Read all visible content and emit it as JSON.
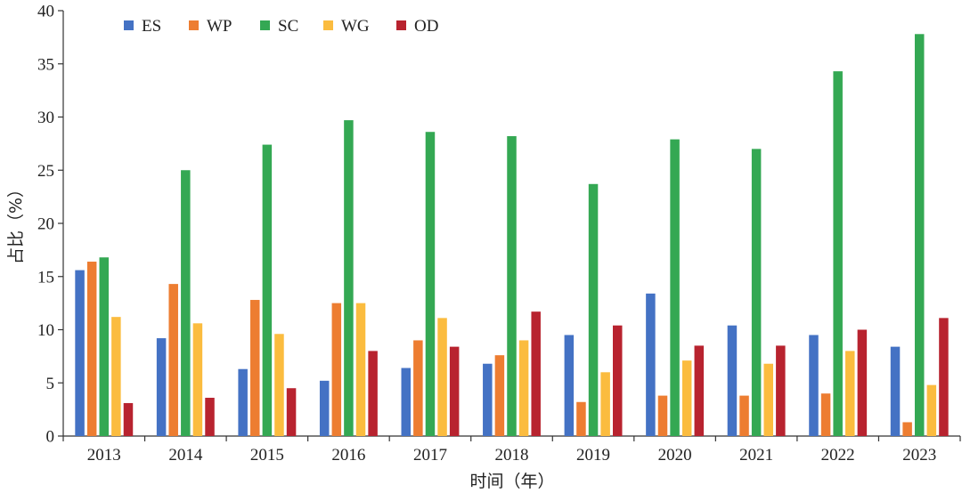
{
  "chart_data": {
    "type": "bar",
    "categories": [
      "2013",
      "2014",
      "2015",
      "2016",
      "2017",
      "2018",
      "2019",
      "2020",
      "2021",
      "2022",
      "2023"
    ],
    "series": [
      {
        "name": "ES",
        "color": "#4472c4",
        "values": [
          15.6,
          9.2,
          6.3,
          5.2,
          6.4,
          6.8,
          9.5,
          13.4,
          10.4,
          9.5,
          8.4
        ]
      },
      {
        "name": "WP",
        "color": "#ed7d31",
        "values": [
          16.4,
          14.3,
          12.8,
          12.5,
          9.0,
          7.6,
          3.2,
          3.8,
          3.8,
          4.0,
          1.3
        ]
      },
      {
        "name": "SC",
        "color": "#34a853",
        "values": [
          16.8,
          25.0,
          27.4,
          29.7,
          28.6,
          28.2,
          23.7,
          27.9,
          27.0,
          34.3,
          37.8
        ]
      },
      {
        "name": "WG",
        "color": "#fbbc3f",
        "values": [
          11.2,
          10.6,
          9.6,
          12.5,
          11.1,
          9.0,
          6.0,
          7.1,
          6.8,
          8.0,
          4.8
        ]
      },
      {
        "name": "OD",
        "color": "#b8232f",
        "values": [
          3.1,
          3.6,
          4.5,
          8.0,
          8.4,
          11.7,
          10.4,
          8.5,
          8.5,
          10.0,
          11.1
        ]
      }
    ],
    "xlabel": "时间（年）",
    "ylabel": "占比（%）",
    "ylim": [
      0,
      40
    ],
    "yticks": [
      0,
      5,
      10,
      15,
      20,
      25,
      30,
      35,
      40
    ],
    "legend_position": "top-left",
    "grid": false
  }
}
